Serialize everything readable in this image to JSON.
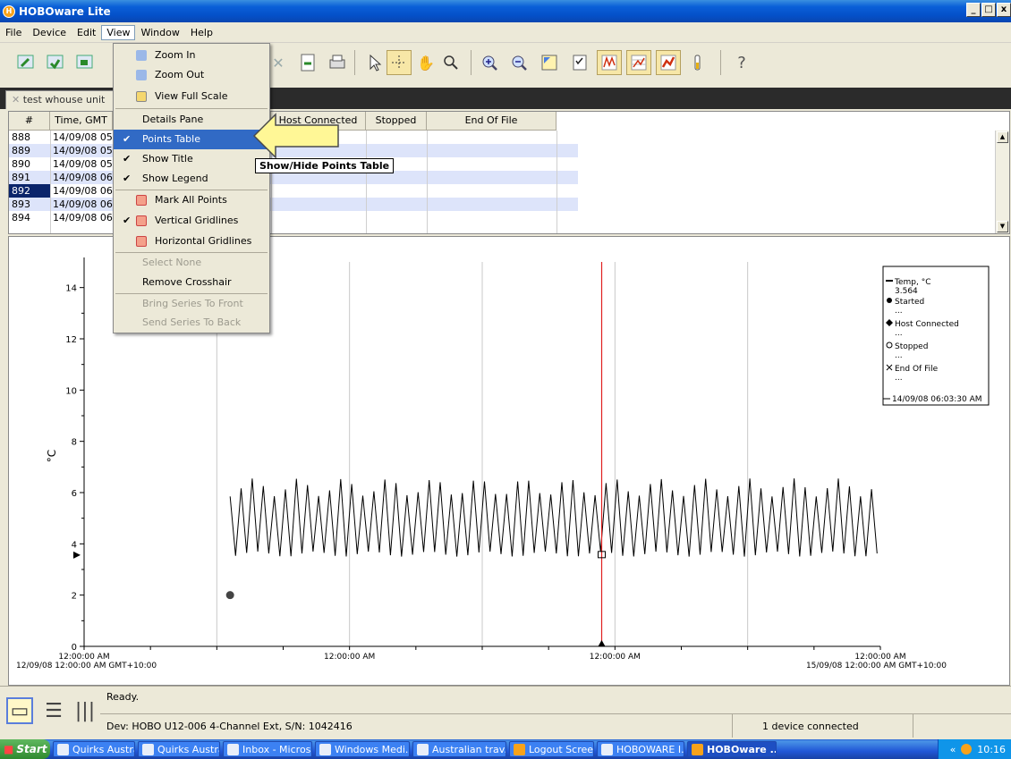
{
  "window": {
    "title": "HOBOware Lite",
    "min": "_",
    "max": "□",
    "close": "x"
  },
  "menubar": [
    "File",
    "Device",
    "Edit",
    "View",
    "Window",
    "Help"
  ],
  "doc_tab": "test whouse unit",
  "points_table": {
    "headers": [
      "#",
      "Time, GMT",
      "d",
      "Host Connected",
      "Stopped",
      "End Of File"
    ],
    "rows": [
      {
        "n": "888",
        "time": "14/09/08 05"
      },
      {
        "n": "889",
        "time": "14/09/08 05"
      },
      {
        "n": "890",
        "time": "14/09/08 05"
      },
      {
        "n": "891",
        "time": "14/09/08 06"
      },
      {
        "n": "892",
        "time": "14/09/08 06"
      },
      {
        "n": "893",
        "time": "14/09/08 06"
      },
      {
        "n": "894",
        "time": "14/09/08 06"
      }
    ]
  },
  "view_menu": {
    "items": [
      {
        "label": "Zoom In",
        "checked": false,
        "enabled": true
      },
      {
        "label": "Zoom Out",
        "checked": false,
        "enabled": true
      },
      {
        "label": "View Full Scale",
        "checked": false,
        "enabled": true
      },
      {
        "label": "Details Pane",
        "checked": false,
        "enabled": true
      },
      {
        "label": "Points Table",
        "checked": true,
        "enabled": true
      },
      {
        "label": "Show Title",
        "checked": true,
        "enabled": true
      },
      {
        "label": "Show Legend",
        "checked": true,
        "enabled": true
      },
      {
        "label": "Mark All Points",
        "checked": false,
        "enabled": true
      },
      {
        "label": "Vertical Gridlines",
        "checked": true,
        "enabled": true
      },
      {
        "label": "Horizontal Gridlines",
        "checked": false,
        "enabled": true
      },
      {
        "label": "Select None",
        "checked": false,
        "enabled": false
      },
      {
        "label": "Remove Crosshair",
        "checked": false,
        "enabled": true
      },
      {
        "label": "Bring Series To Front",
        "checked": false,
        "enabled": false
      },
      {
        "label": "Send Series To Back",
        "checked": false,
        "enabled": false
      }
    ],
    "selected": "Points Table",
    "check_mark": "✔"
  },
  "tooltip": "Show/Hide Points Table",
  "chart_data": {
    "type": "line",
    "ylabel": "°C",
    "yticks": [
      "0",
      "2",
      "4",
      "6",
      "8",
      "10",
      "12",
      "14"
    ],
    "ylim": [
      0,
      15
    ],
    "xticks": [
      "12:00:00 AM",
      "12:00:00 AM",
      "12:00:00 AM",
      "12:00:00 AM"
    ],
    "x_start_label": "12/09/08 12:00:00 AM GMT+10:00",
    "x_end_label": "15/09/08 12:00:00 AM GMT+10:00",
    "x_range_days": [
      0,
      3
    ],
    "series": [
      {
        "name": "Temp, °C",
        "min": 3.5,
        "max": 6.4,
        "first_point_day": 0.55,
        "oscillation_hours": 1
      }
    ],
    "markers": [
      {
        "name": "Started",
        "day": 0.55,
        "value": 2.0
      }
    ],
    "crosshair_day": 1.95,
    "grid": "vertical",
    "legend": {
      "position": "top-right",
      "entries": [
        {
          "label": "Temp, °C",
          "value": "3.564"
        },
        {
          "label": "Started",
          "value": "..."
        },
        {
          "label": "Host Connected",
          "value": "..."
        },
        {
          "label": "Stopped",
          "value": "..."
        },
        {
          "label": "End Of File",
          "value": "..."
        }
      ],
      "footer": "14/09/08 06:03:30 AM"
    }
  },
  "status": {
    "ready": "Ready.",
    "device": "Dev: HOBO U12-006 4-Channel Ext, S/N: 1042416",
    "connected": "1 device connected"
  },
  "taskbar": {
    "start": "Start",
    "tasks": [
      "Quirks Australi...",
      "Quirks Australi...",
      "Inbox - Micros...",
      "Windows Medi...",
      "Australian trav...",
      "Logout Screen",
      "HOBOWARE I...",
      "HOBOware ..."
    ],
    "active_task": 7,
    "tray_chevron": "«",
    "time": "10:16"
  }
}
